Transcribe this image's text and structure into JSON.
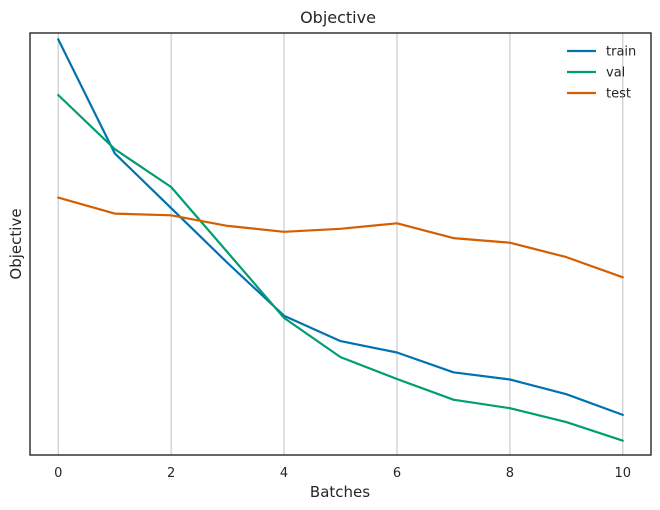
{
  "chart_data": {
    "type": "line",
    "title": "Objective",
    "xlabel": "Batches",
    "ylabel": "Objective",
    "x": [
      0,
      1,
      2,
      3,
      4,
      5,
      6,
      7,
      8,
      9,
      10
    ],
    "xlim": [
      -0.5,
      10.5
    ],
    "xticks": [
      0,
      2,
      4,
      6,
      8,
      10
    ],
    "ylim": [
      0,
      1
    ],
    "grid": "vertical",
    "legend_position": "top-right",
    "series": [
      {
        "name": "train",
        "color": "#0072b2",
        "values": [
          0.985,
          0.715,
          0.585,
          0.455,
          0.33,
          0.27,
          0.243,
          0.196,
          0.179,
          0.144,
          0.095
        ]
      },
      {
        "name": "val",
        "color": "#009e73",
        "values": [
          0.853,
          0.725,
          0.635,
          0.48,
          0.325,
          0.232,
          0.18,
          0.131,
          0.111,
          0.078,
          0.034
        ]
      },
      {
        "name": "test",
        "color": "#d55e00",
        "values": [
          0.61,
          0.572,
          0.568,
          0.543,
          0.529,
          0.536,
          0.549,
          0.514,
          0.503,
          0.469,
          0.421
        ]
      }
    ]
  }
}
